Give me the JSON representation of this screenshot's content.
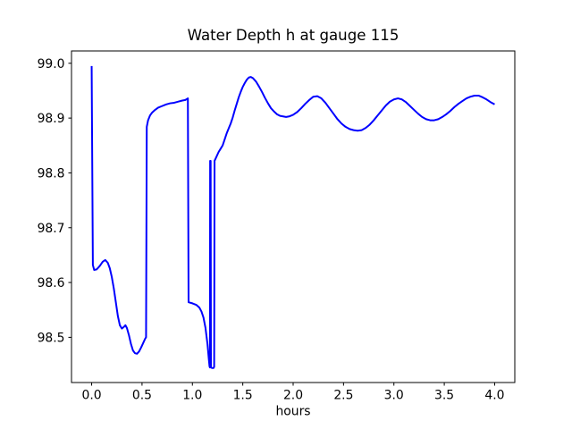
{
  "figure": {
    "background": "#ffffff"
  },
  "chart_data": {
    "type": "line",
    "title": "Water Depth h at gauge 115",
    "xlabel": "hours",
    "ylabel": "",
    "xlim": [
      -0.2,
      4.2
    ],
    "ylim": [
      98.4175,
      99.0225
    ],
    "x_ticks": [
      0.0,
      0.5,
      1.0,
      1.5,
      2.0,
      2.5,
      3.0,
      3.5,
      4.0
    ],
    "x_tick_labels": [
      "0.0",
      "0.5",
      "1.0",
      "1.5",
      "2.0",
      "2.5",
      "3.0",
      "3.5",
      "4.0"
    ],
    "y_ticks": [
      98.5,
      98.6,
      98.7,
      98.8,
      98.9,
      99.0
    ],
    "y_tick_labels": [
      "98.5",
      "98.6",
      "98.7",
      "98.8",
      "98.9",
      "99.0"
    ],
    "grid": false,
    "legend": "none",
    "line_color": "#0000ff",
    "spine_color": "#000000",
    "series": [
      {
        "name": "h",
        "points": [
          [
            0.0,
            98.995
          ],
          [
            0.012,
            98.632
          ],
          [
            0.025,
            98.623
          ],
          [
            0.05,
            98.624
          ],
          [
            0.08,
            98.63
          ],
          [
            0.11,
            98.638
          ],
          [
            0.135,
            98.641
          ],
          [
            0.16,
            98.636
          ],
          [
            0.18,
            98.626
          ],
          [
            0.2,
            98.61
          ],
          [
            0.22,
            98.589
          ],
          [
            0.24,
            98.564
          ],
          [
            0.26,
            98.539
          ],
          [
            0.28,
            98.522
          ],
          [
            0.3,
            98.516
          ],
          [
            0.32,
            98.519
          ],
          [
            0.335,
            98.522
          ],
          [
            0.35,
            98.517
          ],
          [
            0.37,
            98.504
          ],
          [
            0.39,
            98.488
          ],
          [
            0.41,
            98.476
          ],
          [
            0.43,
            98.471
          ],
          [
            0.45,
            98.47
          ],
          [
            0.47,
            98.474
          ],
          [
            0.49,
            98.481
          ],
          [
            0.51,
            98.489
          ],
          [
            0.53,
            98.497
          ],
          [
            0.54,
            98.5
          ],
          [
            0.547,
            98.884
          ],
          [
            0.56,
            98.896
          ],
          [
            0.58,
            98.905
          ],
          [
            0.6,
            98.91
          ],
          [
            0.63,
            98.915
          ],
          [
            0.66,
            98.919
          ],
          [
            0.7,
            98.922
          ],
          [
            0.74,
            98.925
          ],
          [
            0.78,
            98.927
          ],
          [
            0.82,
            98.928
          ],
          [
            0.86,
            98.93
          ],
          [
            0.9,
            98.932
          ],
          [
            0.93,
            98.933
          ],
          [
            0.955,
            98.936
          ],
          [
            0.962,
            98.564
          ],
          [
            1.0,
            98.562
          ],
          [
            1.04,
            98.559
          ],
          [
            1.07,
            98.554
          ],
          [
            1.09,
            98.547
          ],
          [
            1.11,
            98.536
          ],
          [
            1.13,
            98.517
          ],
          [
            1.15,
            98.487
          ],
          [
            1.163,
            98.46
          ],
          [
            1.17,
            98.447
          ],
          [
            1.174,
            98.445
          ],
          [
            1.176,
            98.822
          ],
          [
            1.181,
            98.822
          ],
          [
            1.184,
            98.445
          ],
          [
            1.195,
            98.444
          ],
          [
            1.21,
            98.444
          ],
          [
            1.216,
            98.446
          ],
          [
            1.22,
            98.822
          ],
          [
            1.24,
            98.83
          ],
          [
            1.26,
            98.838
          ],
          [
            1.28,
            98.844
          ],
          [
            1.3,
            98.85
          ],
          [
            1.32,
            98.861
          ],
          [
            1.34,
            98.872
          ],
          [
            1.36,
            98.881
          ],
          [
            1.38,
            98.89
          ],
          [
            1.4,
            98.901
          ],
          [
            1.42,
            98.914
          ],
          [
            1.44,
            98.926
          ],
          [
            1.46,
            98.938
          ],
          [
            1.48,
            98.948
          ],
          [
            1.5,
            98.957
          ],
          [
            1.52,
            98.964
          ],
          [
            1.54,
            98.97
          ],
          [
            1.56,
            98.974
          ],
          [
            1.58,
            98.975
          ],
          [
            1.6,
            98.973
          ],
          [
            1.63,
            98.967
          ],
          [
            1.66,
            98.958
          ],
          [
            1.69,
            98.948
          ],
          [
            1.72,
            98.937
          ],
          [
            1.75,
            98.927
          ],
          [
            1.78,
            98.918
          ],
          [
            1.81,
            98.912
          ],
          [
            1.84,
            98.907
          ],
          [
            1.87,
            98.904
          ],
          [
            1.9,
            98.903
          ],
          [
            1.93,
            98.902
          ],
          [
            1.96,
            98.903
          ],
          [
            2.0,
            98.906
          ],
          [
            2.04,
            98.911
          ],
          [
            2.08,
            98.918
          ],
          [
            2.12,
            98.926
          ],
          [
            2.16,
            98.933
          ],
          [
            2.2,
            98.939
          ],
          [
            2.24,
            98.94
          ],
          [
            2.28,
            98.936
          ],
          [
            2.32,
            98.928
          ],
          [
            2.36,
            98.918
          ],
          [
            2.4,
            98.908
          ],
          [
            2.44,
            98.898
          ],
          [
            2.48,
            98.89
          ],
          [
            2.52,
            98.884
          ],
          [
            2.56,
            98.88
          ],
          [
            2.6,
            98.878
          ],
          [
            2.64,
            98.877
          ],
          [
            2.68,
            98.878
          ],
          [
            2.72,
            98.882
          ],
          [
            2.76,
            98.888
          ],
          [
            2.8,
            98.896
          ],
          [
            2.84,
            98.905
          ],
          [
            2.88,
            98.914
          ],
          [
            2.92,
            98.923
          ],
          [
            2.96,
            98.93
          ],
          [
            3.0,
            98.934
          ],
          [
            3.04,
            98.936
          ],
          [
            3.08,
            98.934
          ],
          [
            3.12,
            98.929
          ],
          [
            3.16,
            98.922
          ],
          [
            3.2,
            98.915
          ],
          [
            3.24,
            98.908
          ],
          [
            3.28,
            98.902
          ],
          [
            3.32,
            98.898
          ],
          [
            3.36,
            98.896
          ],
          [
            3.4,
            98.896
          ],
          [
            3.44,
            98.898
          ],
          [
            3.48,
            98.902
          ],
          [
            3.52,
            98.907
          ],
          [
            3.56,
            98.913
          ],
          [
            3.6,
            98.92
          ],
          [
            3.64,
            98.926
          ],
          [
            3.68,
            98.931
          ],
          [
            3.72,
            98.936
          ],
          [
            3.76,
            98.939
          ],
          [
            3.8,
            98.941
          ],
          [
            3.84,
            98.941
          ],
          [
            3.88,
            98.938
          ],
          [
            3.92,
            98.934
          ],
          [
            3.96,
            98.929
          ],
          [
            4.0,
            98.925
          ]
        ]
      }
    ]
  }
}
